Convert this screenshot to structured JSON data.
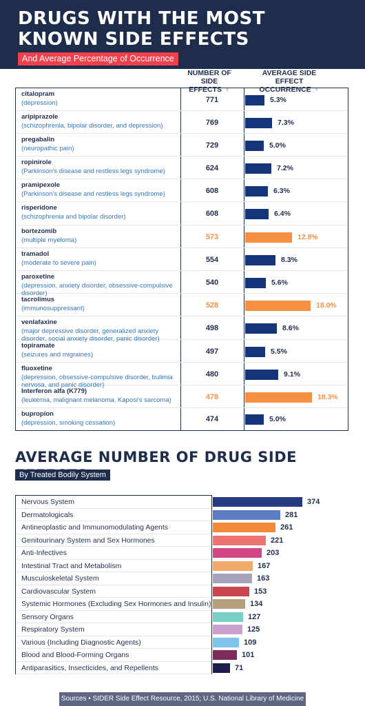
{
  "header": {
    "title": "DRUGS WITH THE MOST KNOWN SIDE EFFECTS",
    "subtitle": "And Average Percentage of Occurrence"
  },
  "table1": {
    "col_count": "NUMBER OF SIDE EFFECTS",
    "col_pct": "AVERAGE SIDE EFFECT OCCURRENCE"
  },
  "section2": {
    "title": "AVERAGE NUMBER OF DRUG SIDE EFFECTS",
    "subtitle": "By Treated Bodily System"
  },
  "footer": {
    "sources": "Sources • SIDER Side Effect Resource, 2015; U.S. National Library of Medicine"
  },
  "colors": {
    "navy": "#1f2d4d",
    "bar_blue": "#15357a",
    "highlight_orange": "#f79043",
    "condition_blue": "#3576b8",
    "accent_red": "#f0404c"
  },
  "chart_data": [
    {
      "type": "bar",
      "title": "DRUGS WITH THE MOST KNOWN SIDE EFFECTS",
      "subtitle": "And Average Percentage of Occurrence",
      "orientation": "horizontal",
      "rows": [
        {
          "drug": "citalopram",
          "condition": "(depression)",
          "side_effects": 771,
          "pct": "5.3%",
          "pct_value": 5.3,
          "highlight": false
        },
        {
          "drug": "aripiprazole",
          "condition": "(schizophrenia, bipolar disorder, and depression)",
          "side_effects": 769,
          "pct": "7.3%",
          "pct_value": 7.3,
          "highlight": false
        },
        {
          "drug": "pregabalin",
          "condition": "(neuropathic pain)",
          "side_effects": 729,
          "pct": "5.0%",
          "pct_value": 5.0,
          "highlight": false
        },
        {
          "drug": "ropinirole",
          "condition": "(Parkinson's disease and restless legs syndrome)",
          "side_effects": 624,
          "pct": "7.2%",
          "pct_value": 7.2,
          "highlight": false
        },
        {
          "drug": "pramipexole",
          "condition": "(Parkinson's disease and restless legs syndrome)",
          "side_effects": 608,
          "pct": "6.3%",
          "pct_value": 6.3,
          "highlight": false
        },
        {
          "drug": "risperidone",
          "condition": "(schizophrenia and bipolar disorder)",
          "side_effects": 608,
          "pct": "6.4%",
          "pct_value": 6.4,
          "highlight": false
        },
        {
          "drug": "bortezomib",
          "condition": "(multiple myeloma)",
          "side_effects": 573,
          "pct": "12.8%",
          "pct_value": 12.8,
          "highlight": true
        },
        {
          "drug": "tramadol",
          "condition": "(moderate to severe pain)",
          "side_effects": 554,
          "pct": "8.3%",
          "pct_value": 8.3,
          "highlight": false
        },
        {
          "drug": "paroxetine",
          "condition": "(depression, anxiety disorder, obsessive-compulsive disorder)",
          "side_effects": 540,
          "pct": "5.6%",
          "pct_value": 5.6,
          "highlight": false
        },
        {
          "drug": "tacrolimus",
          "condition": "(immunosuppressant)",
          "side_effects": 528,
          "pct": "18.0%",
          "pct_value": 18.0,
          "highlight": true
        },
        {
          "drug": "venlafaxine",
          "condition": "(major depressive disorder, generalized anxiety disorder, social anxiety disorder, panic disorder)",
          "side_effects": 498,
          "pct": "8.6%",
          "pct_value": 8.6,
          "highlight": false
        },
        {
          "drug": "topiramate",
          "condition": "(seizures and migraines)",
          "side_effects": 497,
          "pct": "5.5%",
          "pct_value": 5.5,
          "highlight": false
        },
        {
          "drug": "fluoxetine",
          "condition": "(depression, obsessive-compulsive disorder, bulimia nervosa, and panic disorder)",
          "side_effects": 480,
          "pct": "9.1%",
          "pct_value": 9.1,
          "highlight": false
        },
        {
          "drug": "Interferon alfa (K779)",
          "condition": "(leukemia, malignant melanoma, Kaposi's sarcoma)",
          "side_effects": 478,
          "pct": "18.3%",
          "pct_value": 18.3,
          "highlight": true
        },
        {
          "drug": "bupropion",
          "condition": "(depression, smoking cessation)",
          "side_effects": 474,
          "pct": "5.0%",
          "pct_value": 5.0,
          "highlight": false
        }
      ]
    },
    {
      "type": "bar",
      "title": "AVERAGE NUMBER OF DRUG SIDE EFFECTS",
      "subtitle": "By Treated Bodily System",
      "orientation": "horizontal",
      "categories": [
        "Nervous System",
        "Dermatologicals",
        "Antineoplastic and Immunomodulating Agents",
        "Genitourinary System and Sex Hormones",
        "Anti-Infectives",
        "Intestinal Tract and Metabolism",
        "Musculoskeletal System",
        "Cardiovascular System",
        "Systemic Hormones (Excluding Sex Hormones and Insulin)",
        "Sensory Organs",
        "Respiratory System",
        "Various (Including Diagnostic Agents)",
        "Blood and Blood-Forming Organs",
        "Antiparasitics, Insecticides, and Repellents"
      ],
      "values": [
        374,
        281,
        261,
        221,
        203,
        167,
        163,
        153,
        134,
        127,
        125,
        109,
        101,
        71
      ],
      "colors": [
        "#253a80",
        "#5c7dc4",
        "#f28a39",
        "#ef7471",
        "#d24686",
        "#f0aa6b",
        "#a6a3bc",
        "#c9454f",
        "#b59e7a",
        "#78cfc5",
        "#c8a0cc",
        "#7ec4ec",
        "#7e2a5b",
        "#1d1d4d"
      ]
    }
  ]
}
